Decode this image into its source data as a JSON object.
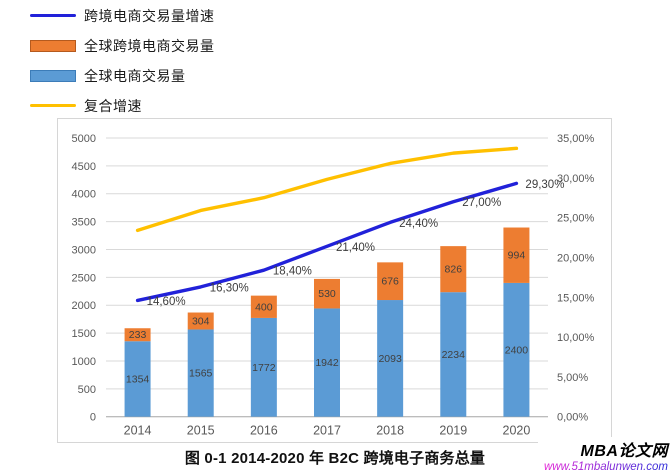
{
  "legend": {
    "items": [
      {
        "label": "跨境电商交易量增速",
        "swatch": "line",
        "color": "#2121d9"
      },
      {
        "label": "全球跨境电商交易量",
        "swatch": "bar",
        "color": "#ed7d31",
        "border": "#b55a1e"
      },
      {
        "label": "全球电商交易量",
        "swatch": "bar",
        "color": "#5b9bd5",
        "border": "#3c7cb8"
      },
      {
        "label": "复合增速",
        "swatch": "line",
        "color": "#ffc000"
      }
    ]
  },
  "chart_data": {
    "type": "combo",
    "categories": [
      "2014",
      "2015",
      "2016",
      "2017",
      "2018",
      "2019",
      "2020"
    ],
    "stacked": true,
    "grid": true,
    "series": [
      {
        "name": "全球电商交易量",
        "type": "bar",
        "axis": "left",
        "color": "#5b9bd5",
        "values": [
          1354,
          1565,
          1772,
          1942,
          2093,
          2234,
          2400
        ]
      },
      {
        "name": "全球跨境电商交易量",
        "type": "bar",
        "axis": "left",
        "color": "#ed7d31",
        "values": [
          233,
          304,
          400,
          530,
          676,
          826,
          994
        ]
      },
      {
        "name": "跨境电商交易量增速",
        "type": "line",
        "axis": "right",
        "color": "#2121d9",
        "values": [
          14.6,
          16.3,
          18.4,
          21.4,
          24.4,
          27.0,
          29.3
        ],
        "labels": [
          "14,60%",
          "16,30%",
          "18,40%",
          "21,40%",
          "24,40%",
          "27,00%",
          "29,30%"
        ]
      },
      {
        "name": "复合增速",
        "type": "line",
        "axis": "right",
        "color": "#ffc000",
        "values": [
          23.4,
          25.9,
          27.5,
          29.8,
          31.8,
          33.1,
          33.7
        ]
      }
    ],
    "left_axis": {
      "min": 0,
      "max": 5000,
      "step": 500,
      "ticks": [
        "0",
        "500",
        "1000",
        "1500",
        "2000",
        "2500",
        "3000",
        "3500",
        "4000",
        "4500",
        "5000"
      ]
    },
    "right_axis": {
      "min": 0,
      "max": 35,
      "step": 5,
      "ticks": [
        "0,00%",
        "5,00%",
        "10,00%",
        "15,00%",
        "20,00%",
        "25,00%",
        "30,00%",
        "35,00%"
      ]
    }
  },
  "caption": {
    "text": "图 0-1 2014-2020 年 B2C 跨境电子商务总量"
  },
  "watermark": {
    "brand": "MBA论文网",
    "url": "www.51mbalunwen.com"
  }
}
